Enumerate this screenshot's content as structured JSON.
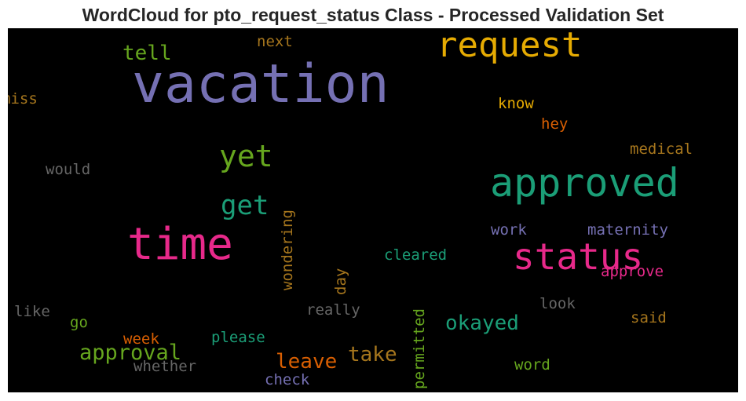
{
  "chart_data": {
    "type": "wordcloud",
    "title": "WordCloud for pto_request_status Class - Processed Validation Set",
    "background": "#000000",
    "colormap": "Dark2",
    "words": [
      {
        "text": "vacation",
        "size": 68,
        "color": "#7570b3",
        "vertical": false
      },
      {
        "text": "approved",
        "size": 50,
        "color": "#1b9e77",
        "vertical": false
      },
      {
        "text": "time",
        "size": 56,
        "color": "#e7298a",
        "vertical": false
      },
      {
        "text": "status",
        "size": 46,
        "color": "#e7298a",
        "vertical": false
      },
      {
        "text": "request",
        "size": 44,
        "color": "#e6ab02",
        "vertical": false
      },
      {
        "text": "yet",
        "size": 38,
        "color": "#66a61e",
        "vertical": false
      },
      {
        "text": "get",
        "size": 34,
        "color": "#1b9e77",
        "vertical": false
      },
      {
        "text": "approval",
        "size": 27,
        "color": "#66a61e",
        "vertical": false
      },
      {
        "text": "okayed",
        "size": 26,
        "color": "#1b9e77",
        "vertical": false
      },
      {
        "text": "leave",
        "size": 26,
        "color": "#d95f02",
        "vertical": false
      },
      {
        "text": "take",
        "size": 26,
        "color": "#a6761d",
        "vertical": false
      },
      {
        "text": "tell",
        "size": 26,
        "color": "#66a61e",
        "vertical": false
      },
      {
        "text": "wondering",
        "size": 19,
        "color": "#a6761d",
        "vertical": true
      },
      {
        "text": "permitted",
        "size": 19,
        "color": "#66a61e",
        "vertical": true
      },
      {
        "text": "day",
        "size": 19,
        "color": "#a6761d",
        "vertical": true
      },
      {
        "text": "cleared",
        "size": 19,
        "color": "#1b9e77",
        "vertical": false
      },
      {
        "text": "work",
        "size": 19,
        "color": "#7570b3",
        "vertical": false
      },
      {
        "text": "maternity",
        "size": 19,
        "color": "#7570b3",
        "vertical": false
      },
      {
        "text": "approve",
        "size": 19,
        "color": "#e7298a",
        "vertical": false
      },
      {
        "text": "medical",
        "size": 19,
        "color": "#a6761d",
        "vertical": false
      },
      {
        "text": "know",
        "size": 19,
        "color": "#e6ab02",
        "vertical": false
      },
      {
        "text": "hey",
        "size": 19,
        "color": "#d95f02",
        "vertical": false
      },
      {
        "text": "next",
        "size": 19,
        "color": "#a6761d",
        "vertical": false
      },
      {
        "text": "miss",
        "size": 19,
        "color": "#a6761d",
        "vertical": false
      },
      {
        "text": "would",
        "size": 19,
        "color": "#666666",
        "vertical": false
      },
      {
        "text": "like",
        "size": 19,
        "color": "#666666",
        "vertical": false
      },
      {
        "text": "go",
        "size": 19,
        "color": "#66a61e",
        "vertical": false
      },
      {
        "text": "week",
        "size": 19,
        "color": "#d95f02",
        "vertical": false
      },
      {
        "text": "please",
        "size": 19,
        "color": "#1b9e77",
        "vertical": false
      },
      {
        "text": "whether",
        "size": 19,
        "color": "#666666",
        "vertical": false
      },
      {
        "text": "check",
        "size": 19,
        "color": "#7570b3",
        "vertical": false
      },
      {
        "text": "really",
        "size": 19,
        "color": "#666666",
        "vertical": false
      },
      {
        "text": "look",
        "size": 19,
        "color": "#666666",
        "vertical": false
      },
      {
        "text": "said",
        "size": 19,
        "color": "#a6761d",
        "vertical": false
      },
      {
        "text": "word",
        "size": 19,
        "color": "#66a61e",
        "vertical": false
      }
    ]
  }
}
